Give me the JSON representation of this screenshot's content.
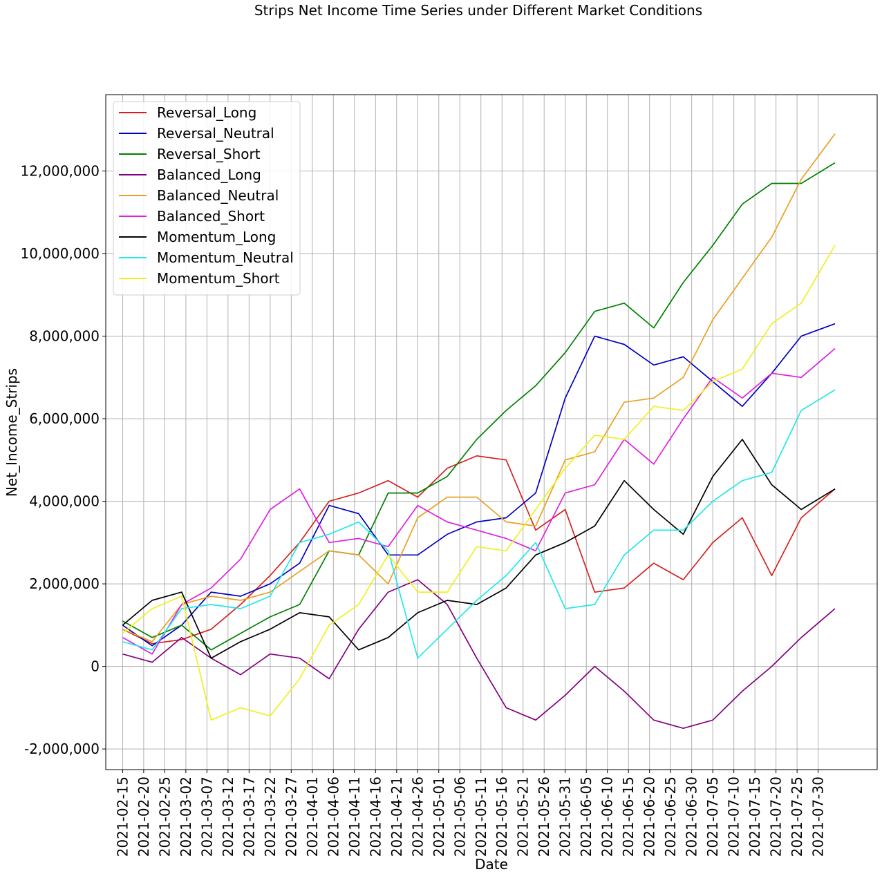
{
  "chart_data": {
    "type": "line",
    "title": "Strips Net Income Time Series under Different Market Conditions",
    "xlabel": "Date",
    "ylabel": "Net_Income_Strips",
    "x_start": "2021-02-15",
    "x_end": "2021-08-03",
    "xlim": [
      "2021-02-11",
      "2021-08-13"
    ],
    "ylim": [
      -2500000,
      13850000
    ],
    "grid": true,
    "legend_position": "top-left",
    "x_ticks": [
      "2021-02-15",
      "2021-02-20",
      "2021-02-25",
      "2021-03-02",
      "2021-03-07",
      "2021-03-12",
      "2021-03-17",
      "2021-03-22",
      "2021-03-27",
      "2021-04-01",
      "2021-04-06",
      "2021-04-11",
      "2021-04-16",
      "2021-04-21",
      "2021-04-26",
      "2021-05-01",
      "2021-05-06",
      "2021-05-11",
      "2021-05-16",
      "2021-05-21",
      "2021-05-26",
      "2021-05-31",
      "2021-06-05",
      "2021-06-10",
      "2021-06-15",
      "2021-06-20",
      "2021-06-25",
      "2021-06-30",
      "2021-07-05",
      "2021-07-10",
      "2021-07-15",
      "2021-07-20",
      "2021-07-25",
      "2021-07-30"
    ],
    "y_ticks": [
      {
        "value": -2000000,
        "label": "-2,000,000"
      },
      {
        "value": 0,
        "label": "0"
      },
      {
        "value": 2000000,
        "label": "2,000,000"
      },
      {
        "value": 4000000,
        "label": "4,000,000"
      },
      {
        "value": 6000000,
        "label": "6,000,000"
      },
      {
        "value": 8000000,
        "label": "8,000,000"
      },
      {
        "value": 10000000,
        "label": "10,000,000"
      },
      {
        "value": 12000000,
        "label": "12,000,000"
      }
    ],
    "series": [
      {
        "name": "Reversal_Long",
        "color": "#d62020",
        "x": [
          "2021-02-15",
          "2021-02-22",
          "2021-03-01",
          "2021-03-08",
          "2021-03-15",
          "2021-03-22",
          "2021-03-29",
          "2021-04-05",
          "2021-04-12",
          "2021-04-19",
          "2021-04-26",
          "2021-05-03",
          "2021-05-10",
          "2021-05-17",
          "2021-05-24",
          "2021-05-31",
          "2021-06-07",
          "2021-06-14",
          "2021-06-21",
          "2021-06-28",
          "2021-07-05",
          "2021-07-12",
          "2021-07-19",
          "2021-07-26",
          "2021-08-03"
        ],
        "y": [
          900000,
          550000,
          650000,
          900000,
          1500000,
          2200000,
          3000000,
          4000000,
          4200000,
          4500000,
          4100000,
          4800000,
          5100000,
          5000000,
          3300000,
          3800000,
          1800000,
          1900000,
          2500000,
          2100000,
          3000000,
          3600000,
          2200000,
          3600000,
          4300000
        ]
      },
      {
        "name": "Reversal_Neutral",
        "color": "#0000c0",
        "x": [
          "2021-02-15",
          "2021-02-22",
          "2021-03-01",
          "2021-03-08",
          "2021-03-15",
          "2021-03-22",
          "2021-03-29",
          "2021-04-05",
          "2021-04-12",
          "2021-04-19",
          "2021-04-26",
          "2021-05-03",
          "2021-05-10",
          "2021-05-17",
          "2021-05-24",
          "2021-05-31",
          "2021-06-07",
          "2021-06-14",
          "2021-06-21",
          "2021-06-28",
          "2021-07-05",
          "2021-07-12",
          "2021-07-19",
          "2021-07-26",
          "2021-08-03"
        ],
        "y": [
          1000000,
          500000,
          1000000,
          1800000,
          1700000,
          2000000,
          2500000,
          3900000,
          3700000,
          2700000,
          2700000,
          3200000,
          3500000,
          3600000,
          4200000,
          6500000,
          8000000,
          7800000,
          7300000,
          7500000,
          6900000,
          6300000,
          7100000,
          8000000,
          8300000
        ]
      },
      {
        "name": "Reversal_Short",
        "color": "#008000",
        "x": [
          "2021-02-15",
          "2021-02-22",
          "2021-03-01",
          "2021-03-08",
          "2021-03-15",
          "2021-03-22",
          "2021-03-29",
          "2021-04-05",
          "2021-04-12",
          "2021-04-19",
          "2021-04-26",
          "2021-05-03",
          "2021-05-10",
          "2021-05-17",
          "2021-05-24",
          "2021-05-31",
          "2021-06-07",
          "2021-06-14",
          "2021-06-21",
          "2021-06-28",
          "2021-07-05",
          "2021-07-12",
          "2021-07-19",
          "2021-07-26",
          "2021-08-03"
        ],
        "y": [
          1100000,
          700000,
          1000000,
          400000,
          800000,
          1200000,
          1500000,
          2800000,
          2700000,
          4200000,
          4200000,
          4600000,
          5500000,
          6200000,
          6800000,
          7600000,
          8600000,
          8800000,
          8200000,
          9300000,
          10200000,
          11200000,
          11700000,
          11700000,
          12200000
        ]
      },
      {
        "name": "Balanced_Long",
        "color": "#800080",
        "x": [
          "2021-02-15",
          "2021-02-22",
          "2021-03-01",
          "2021-03-08",
          "2021-03-15",
          "2021-03-22",
          "2021-03-29",
          "2021-04-05",
          "2021-04-12",
          "2021-04-19",
          "2021-04-26",
          "2021-05-03",
          "2021-05-10",
          "2021-05-17",
          "2021-05-24",
          "2021-05-31",
          "2021-06-07",
          "2021-06-14",
          "2021-06-21",
          "2021-06-28",
          "2021-07-05",
          "2021-07-12",
          "2021-07-19",
          "2021-07-26",
          "2021-08-03"
        ],
        "y": [
          300000,
          100000,
          700000,
          200000,
          -200000,
          300000,
          200000,
          -300000,
          900000,
          1800000,
          2100000,
          1500000,
          200000,
          -1000000,
          -1300000,
          -700000,
          0,
          -600000,
          -1300000,
          -1500000,
          -1300000,
          -600000,
          0,
          700000,
          1400000
        ]
      },
      {
        "name": "Balanced_Neutral",
        "color": "#e8a020",
        "x": [
          "2021-02-15",
          "2021-02-22",
          "2021-03-01",
          "2021-03-08",
          "2021-03-15",
          "2021-03-22",
          "2021-03-29",
          "2021-04-05",
          "2021-04-12",
          "2021-04-19",
          "2021-04-26",
          "2021-05-03",
          "2021-05-10",
          "2021-05-17",
          "2021-05-24",
          "2021-05-31",
          "2021-06-07",
          "2021-06-14",
          "2021-06-21",
          "2021-06-28",
          "2021-07-05",
          "2021-07-12",
          "2021-07-19",
          "2021-07-26",
          "2021-08-03"
        ],
        "y": [
          900000,
          600000,
          1500000,
          1700000,
          1600000,
          1800000,
          2300000,
          2800000,
          2700000,
          2000000,
          3600000,
          4100000,
          4100000,
          3500000,
          3400000,
          5000000,
          5200000,
          6400000,
          6500000,
          7000000,
          8400000,
          9400000,
          10400000,
          11800000,
          12900000
        ]
      },
      {
        "name": "Balanced_Short",
        "color": "#e020e0",
        "x": [
          "2021-02-15",
          "2021-02-22",
          "2021-03-01",
          "2021-03-08",
          "2021-03-15",
          "2021-03-22",
          "2021-03-29",
          "2021-04-05",
          "2021-04-12",
          "2021-04-19",
          "2021-04-26",
          "2021-05-03",
          "2021-05-10",
          "2021-05-17",
          "2021-05-24",
          "2021-05-31",
          "2021-06-07",
          "2021-06-14",
          "2021-06-21",
          "2021-06-28",
          "2021-07-05",
          "2021-07-12",
          "2021-07-19",
          "2021-07-26",
          "2021-08-03"
        ],
        "y": [
          700000,
          300000,
          1500000,
          1900000,
          2600000,
          3800000,
          4300000,
          3000000,
          3100000,
          2900000,
          3900000,
          3500000,
          3300000,
          3100000,
          2800000,
          4200000,
          4400000,
          5500000,
          4900000,
          6000000,
          7000000,
          6500000,
          7100000,
          7000000,
          7700000
        ]
      },
      {
        "name": "Momentum_Long",
        "color": "#000000",
        "x": [
          "2021-02-15",
          "2021-02-22",
          "2021-03-01",
          "2021-03-08",
          "2021-03-15",
          "2021-03-22",
          "2021-03-29",
          "2021-04-05",
          "2021-04-12",
          "2021-04-19",
          "2021-04-26",
          "2021-05-03",
          "2021-05-10",
          "2021-05-17",
          "2021-05-24",
          "2021-05-31",
          "2021-06-07",
          "2021-06-14",
          "2021-06-21",
          "2021-06-28",
          "2021-07-05",
          "2021-07-12",
          "2021-07-19",
          "2021-07-26",
          "2021-08-03"
        ],
        "y": [
          1000000,
          1600000,
          1800000,
          200000,
          600000,
          900000,
          1300000,
          1200000,
          400000,
          700000,
          1300000,
          1600000,
          1500000,
          1900000,
          2700000,
          3000000,
          3400000,
          4500000,
          3800000,
          3200000,
          4600000,
          5500000,
          4400000,
          3800000,
          4300000
        ]
      },
      {
        "name": "Momentum_Neutral",
        "color": "#20e8e8",
        "x": [
          "2021-02-15",
          "2021-02-22",
          "2021-03-01",
          "2021-03-08",
          "2021-03-15",
          "2021-03-22",
          "2021-03-29",
          "2021-04-05",
          "2021-04-12",
          "2021-04-19",
          "2021-04-26",
          "2021-05-03",
          "2021-05-10",
          "2021-05-17",
          "2021-05-24",
          "2021-05-31",
          "2021-06-07",
          "2021-06-14",
          "2021-06-21",
          "2021-06-28",
          "2021-07-05",
          "2021-07-12",
          "2021-07-19",
          "2021-07-26",
          "2021-08-03"
        ],
        "y": [
          600000,
          400000,
          1400000,
          1500000,
          1400000,
          1700000,
          3000000,
          3200000,
          3500000,
          2800000,
          200000,
          900000,
          1600000,
          2200000,
          3000000,
          1400000,
          1500000,
          2700000,
          3300000,
          3300000,
          4000000,
          4500000,
          4700000,
          6200000,
          6700000
        ]
      },
      {
        "name": "Momentum_Short",
        "color": "#f0f020",
        "x": [
          "2021-02-15",
          "2021-02-22",
          "2021-03-01",
          "2021-03-08",
          "2021-03-15",
          "2021-03-22",
          "2021-03-29",
          "2021-04-05",
          "2021-04-12",
          "2021-04-19",
          "2021-04-26",
          "2021-05-03",
          "2021-05-10",
          "2021-05-17",
          "2021-05-24",
          "2021-05-31",
          "2021-06-07",
          "2021-06-14",
          "2021-06-21",
          "2021-06-28",
          "2021-07-05",
          "2021-07-12",
          "2021-07-19",
          "2021-07-26",
          "2021-08-03"
        ],
        "y": [
          800000,
          1400000,
          1700000,
          -1300000,
          -1000000,
          -1200000,
          -300000,
          1000000,
          1500000,
          2700000,
          1800000,
          1800000,
          2900000,
          2800000,
          3800000,
          4800000,
          5600000,
          5500000,
          6300000,
          6200000,
          6900000,
          7200000,
          8300000,
          8800000,
          10200000
        ]
      }
    ]
  }
}
